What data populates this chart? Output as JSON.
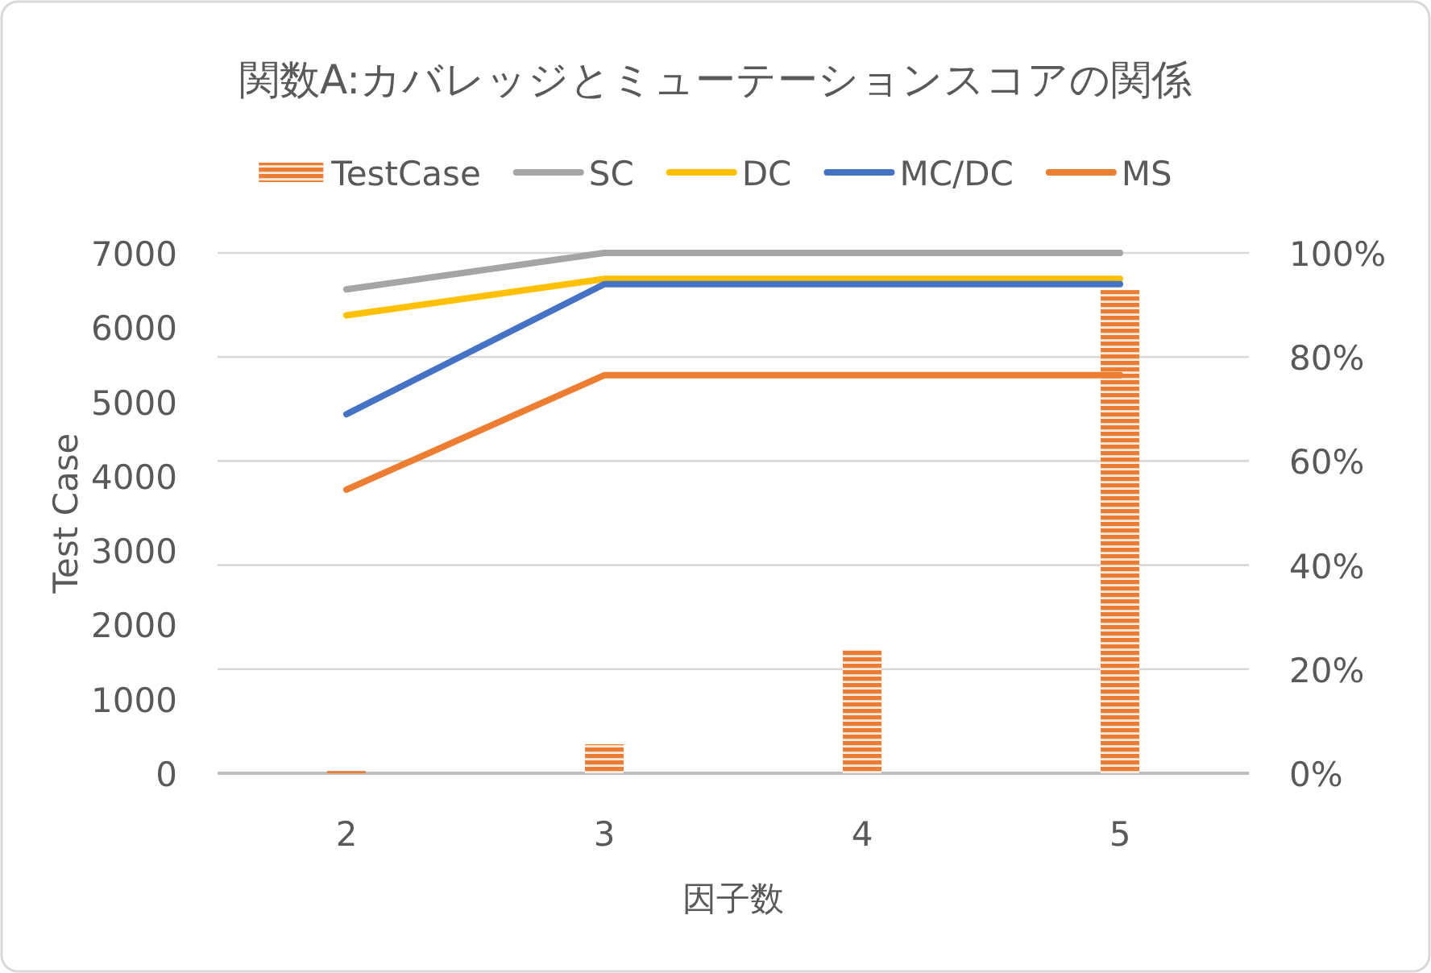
{
  "chart_data": {
    "type": "bar",
    "title": "関数A:カバレッジとミューテーションスコアの関係",
    "xlabel": "因子数",
    "ylabel": "Test Case",
    "categories": [
      "2",
      "3",
      "4",
      "5"
    ],
    "series": [
      {
        "name": "TestCase",
        "color": "#ed7d31",
        "values": [
          30,
          390,
          1650,
          6500
        ]
      },
      {
        "name": "SC",
        "type": "line",
        "axis": "y2",
        "color": "#a5a5a5",
        "values": [
          93,
          100,
          100,
          100
        ]
      },
      {
        "name": "DC",
        "type": "line",
        "axis": "y2",
        "color": "#ffc000",
        "values": [
          88,
          95,
          95,
          95
        ]
      },
      {
        "name": "MC/DC",
        "type": "line",
        "axis": "y2",
        "color": "#4472c4",
        "values": [
          69,
          94,
          94,
          94
        ]
      },
      {
        "name": "MS",
        "type": "line",
        "axis": "y2",
        "color": "#ed7d31",
        "values": [
          54.5,
          76.5,
          76.5,
          76.5
        ]
      }
    ],
    "ylim": [
      0,
      7000
    ],
    "yticks": [
      0,
      1000,
      2000,
      3000,
      4000,
      5000,
      6000,
      7000
    ],
    "y2lim": [
      0,
      100
    ],
    "y2ticks": [
      {
        "value": 0,
        "label": "0%"
      },
      {
        "value": 20,
        "label": "20%"
      },
      {
        "value": 40,
        "label": "40%"
      },
      {
        "value": 60,
        "label": "60%"
      },
      {
        "value": 80,
        "label": "80%"
      },
      {
        "value": 100,
        "label": "100%"
      }
    ],
    "grid": true,
    "legend": "top"
  }
}
